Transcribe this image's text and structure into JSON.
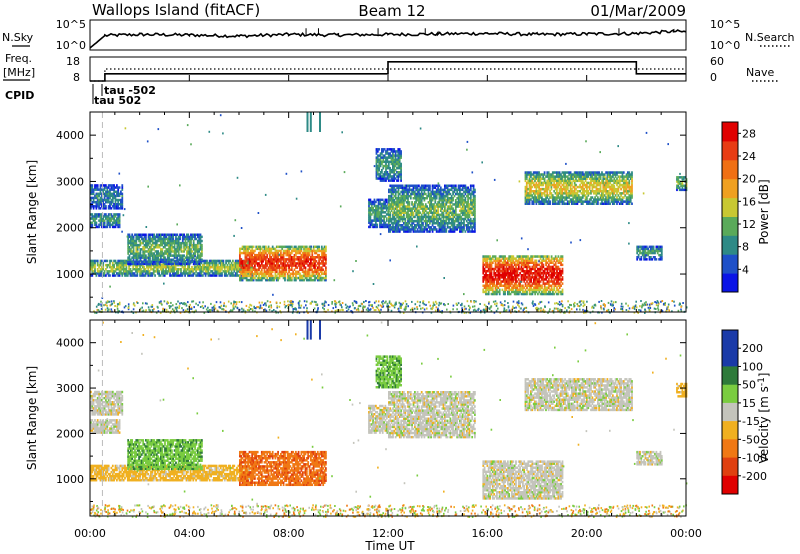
{
  "header": {
    "station": "Wallops Island (fitACF)",
    "beam": "Beam 12",
    "date": "01/Mar/2009"
  },
  "noise_panel": {
    "left_label": "N.Sky",
    "right_label": "N.Search",
    "left_ticks": [
      "10^5",
      "10^0"
    ],
    "right_ticks": [
      "10^5",
      "10^0"
    ]
  },
  "freq_panel": {
    "left_label_1": "Freq.",
    "left_label_2": "[MHz]",
    "right_label": "Nave",
    "left_ticks": [
      "18",
      "8"
    ],
    "right_ticks": [
      "60",
      "0"
    ]
  },
  "cpid_panel": {
    "label": "CPID",
    "events": [
      {
        "time": "00:30",
        "text": "tau 502"
      },
      {
        "time": "00:45",
        "text": "tau -502"
      }
    ]
  },
  "x_axis": {
    "label": "Time UT",
    "ticks": [
      "00:00",
      "04:00",
      "08:00",
      "12:00",
      "16:00",
      "20:00",
      "00:00"
    ]
  },
  "power_panel": {
    "ylabel": "Slant Range [km]",
    "yticks": [
      "1000",
      "2000",
      "3000",
      "4000"
    ],
    "colorbar_label": "Power [dB]",
    "colorbar_ticks": [
      "4",
      "8",
      "12",
      "16",
      "20",
      "24",
      "28"
    ]
  },
  "velocity_panel": {
    "ylabel": "Slant Range [km]",
    "yticks": [
      "1000",
      "2000",
      "3000",
      "4000"
    ],
    "colorbar_label": "Velocity [m s",
    "colorbar_sup": "-1",
    "colorbar_close": "]",
    "colorbar_ticks": [
      "200",
      "100",
      "50",
      "15",
      "-15",
      "-50",
      "-100",
      "-200"
    ]
  },
  "chart_data": [
    {
      "type": "line",
      "title": "Wallops Island (fitACF)  Beam 12  01/Mar/2009",
      "xlabel": "Time UT",
      "xlim": [
        0,
        24
      ],
      "series": [
        {
          "name": "N.Sky",
          "x": [
            0,
            0.6,
            2,
            4,
            6,
            8,
            10,
            12,
            14,
            16,
            18,
            20,
            22,
            23.5,
            24
          ],
          "y_log10": [
            0,
            2.4,
            2.6,
            2.5,
            2.3,
            2.6,
            2.5,
            2.6,
            2.7,
            2.8,
            2.6,
            2.7,
            2.8,
            3.2,
            3.1
          ]
        },
        {
          "name": "N.Search",
          "x": [
            0,
            24
          ],
          "y_log10": [
            null,
            null
          ]
        }
      ]
    },
    {
      "type": "line",
      "ylabel": "Freq. [MHz]",
      "xlim": [
        0,
        24
      ],
      "series": [
        {
          "name": "Freq.",
          "x": [
            0,
            0.6,
            12,
            22,
            24
          ],
          "y": [
            8,
            11,
            16,
            11,
            11
          ],
          "ylim": [
            8,
            18
          ]
        },
        {
          "name": "Nave",
          "x": [
            0,
            0.6,
            24
          ],
          "y": [
            0,
            30,
            30
          ],
          "ylim": [
            0,
            60
          ]
        }
      ]
    },
    {
      "type": "heatmap",
      "ylabel": "Slant Range [km]",
      "xlabel": "Time UT",
      "xlim": [
        0,
        24
      ],
      "ylim": [
        180,
        4500
      ],
      "colorbar": {
        "label": "Power [dB]",
        "range": [
          0,
          30
        ],
        "ticks": [
          4,
          8,
          12,
          16,
          20,
          24,
          28
        ]
      },
      "regions": [
        {
          "t": [
            0.0,
            1.3
          ],
          "r": [
            2400,
            2900
          ],
          "level": 8
        },
        {
          "t": [
            0.0,
            1.2
          ],
          "r": [
            2000,
            2300
          ],
          "level": 10
        },
        {
          "t": [
            0.0,
            6.5
          ],
          "r": [
            950,
            1300
          ],
          "level": 14
        },
        {
          "t": [
            1.5,
            4.5
          ],
          "r": [
            1200,
            1850
          ],
          "level": 12
        },
        {
          "t": [
            6.0,
            9.5
          ],
          "r": [
            850,
            1600
          ],
          "level": 26
        },
        {
          "t": [
            11.2,
            12.0
          ],
          "r": [
            2000,
            2600
          ],
          "level": 10
        },
        {
          "t": [
            11.5,
            12.5
          ],
          "r": [
            3000,
            3700
          ],
          "level": 10
        },
        {
          "t": [
            12.0,
            15.5
          ],
          "r": [
            1900,
            2900
          ],
          "level": 12
        },
        {
          "t": [
            15.8,
            19.0
          ],
          "r": [
            550,
            1400
          ],
          "level": 28
        },
        {
          "t": [
            17.5,
            21.8
          ],
          "r": [
            2500,
            3200
          ],
          "level": 16
        },
        {
          "t": [
            22.0,
            23.0
          ],
          "r": [
            1300,
            1600
          ],
          "level": 10
        },
        {
          "t": [
            23.6,
            24.0
          ],
          "r": [
            2800,
            3100
          ],
          "level": 14
        }
      ]
    },
    {
      "type": "heatmap",
      "ylabel": "Slant Range [km]",
      "xlabel": "Time UT",
      "xlim": [
        0,
        24
      ],
      "ylim": [
        180,
        4500
      ],
      "colorbar": {
        "label": "Velocity [m s-1]",
        "range": [
          -200,
          200
        ],
        "ticks": [
          200,
          100,
          50,
          15,
          -15,
          -50,
          -100,
          -200
        ]
      },
      "regions": [
        {
          "t": [
            0.0,
            1.3
          ],
          "r": [
            2400,
            2900
          ],
          "velocity": 0
        },
        {
          "t": [
            0.0,
            1.2
          ],
          "r": [
            2000,
            2300
          ],
          "velocity": 0
        },
        {
          "t": [
            0.0,
            6.5
          ],
          "r": [
            950,
            1300
          ],
          "velocity": -30
        },
        {
          "t": [
            1.5,
            4.5
          ],
          "r": [
            1200,
            1850
          ],
          "velocity": 40
        },
        {
          "t": [
            6.0,
            9.5
          ],
          "r": [
            850,
            1600
          ],
          "velocity": -90
        },
        {
          "t": [
            11.2,
            12.0
          ],
          "r": [
            2000,
            2600
          ],
          "velocity": 0
        },
        {
          "t": [
            11.5,
            12.5
          ],
          "r": [
            3000,
            3700
          ],
          "velocity": 40
        },
        {
          "t": [
            12.0,
            15.5
          ],
          "r": [
            1900,
            2900
          ],
          "velocity": 0
        },
        {
          "t": [
            15.8,
            19.0
          ],
          "r": [
            550,
            1400
          ],
          "velocity": 0
        },
        {
          "t": [
            17.5,
            21.8
          ],
          "r": [
            2500,
            3200
          ],
          "velocity": 0
        },
        {
          "t": [
            22.0,
            23.0
          ],
          "r": [
            1300,
            1600
          ],
          "velocity": 0
        },
        {
          "t": [
            23.6,
            24.0
          ],
          "r": [
            2800,
            3100
          ],
          "velocity": -30
        }
      ]
    }
  ]
}
